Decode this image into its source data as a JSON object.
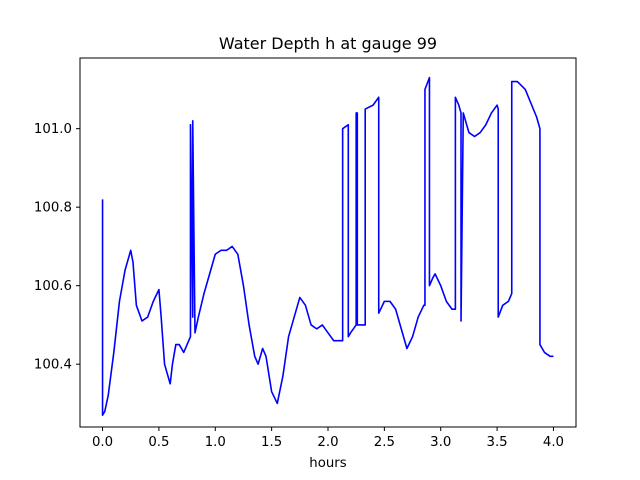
{
  "chart_data": {
    "type": "line",
    "title": "Water Depth h at gauge 99",
    "xlabel": "hours",
    "ylabel": "",
    "xlim": [
      -0.2,
      4.2
    ],
    "ylim": [
      100.24,
      101.18
    ],
    "xticks": [
      0.0,
      0.5,
      1.0,
      1.5,
      2.0,
      2.5,
      3.0,
      3.5,
      4.0
    ],
    "xtick_labels": [
      "0.0",
      "0.5",
      "1.0",
      "1.5",
      "2.0",
      "2.5",
      "3.0",
      "3.5",
      "4.0"
    ],
    "yticks": [
      100.4,
      100.6,
      100.8,
      101.0
    ],
    "ytick_labels": [
      "100.4",
      "100.6",
      "100.8",
      "101.0"
    ],
    "grid": false,
    "legend": "none",
    "series": [
      {
        "color": "#0000ff",
        "x": [
          0.0,
          0.0,
          0.02,
          0.05,
          0.1,
          0.15,
          0.2,
          0.25,
          0.27,
          0.3,
          0.35,
          0.4,
          0.45,
          0.5,
          0.52,
          0.55,
          0.6,
          0.62,
          0.65,
          0.68,
          0.72,
          0.75,
          0.78,
          0.78,
          0.8,
          0.8,
          0.82,
          0.85,
          0.9,
          0.95,
          1.0,
          1.05,
          1.1,
          1.15,
          1.2,
          1.25,
          1.3,
          1.35,
          1.38,
          1.42,
          1.45,
          1.5,
          1.55,
          1.6,
          1.65,
          1.7,
          1.75,
          1.8,
          1.85,
          1.9,
          1.95,
          2.0,
          2.05,
          2.1,
          2.13,
          2.13,
          2.18,
          2.18,
          2.2,
          2.25,
          2.25,
          2.26,
          2.26,
          2.3,
          2.33,
          2.33,
          2.4,
          2.45,
          2.45,
          2.5,
          2.55,
          2.6,
          2.65,
          2.7,
          2.75,
          2.8,
          2.85,
          2.86,
          2.86,
          2.9,
          2.9,
          2.93,
          2.95,
          3.0,
          3.05,
          3.1,
          3.13,
          3.13,
          3.16,
          3.18,
          3.18,
          3.2,
          3.25,
          3.3,
          3.35,
          3.4,
          3.45,
          3.5,
          3.51,
          3.51,
          3.55,
          3.6,
          3.63,
          3.63,
          3.68,
          3.75,
          3.85,
          3.88,
          3.88,
          3.92,
          3.97,
          4.0
        ],
        "values": [
          100.82,
          100.27,
          100.28,
          100.32,
          100.43,
          100.56,
          100.64,
          100.69,
          100.66,
          100.55,
          100.51,
          100.52,
          100.56,
          100.59,
          100.52,
          100.4,
          100.35,
          100.4,
          100.45,
          100.45,
          100.43,
          100.45,
          100.47,
          101.01,
          100.52,
          101.02,
          100.48,
          100.52,
          100.58,
          100.63,
          100.68,
          100.69,
          100.69,
          100.7,
          100.68,
          100.6,
          100.5,
          100.42,
          100.4,
          100.44,
          100.42,
          100.33,
          100.3,
          100.37,
          100.47,
          100.52,
          100.57,
          100.55,
          100.5,
          100.49,
          100.5,
          100.48,
          100.46,
          100.46,
          100.46,
          101.0,
          101.01,
          100.47,
          100.48,
          100.5,
          101.04,
          101.04,
          100.5,
          100.5,
          100.5,
          101.05,
          101.06,
          101.08,
          100.53,
          100.56,
          100.56,
          100.54,
          100.49,
          100.44,
          100.47,
          100.52,
          100.55,
          100.55,
          101.1,
          101.13,
          100.6,
          100.62,
          100.63,
          100.6,
          100.56,
          100.54,
          100.54,
          101.08,
          101.06,
          101.04,
          100.51,
          101.04,
          100.99,
          100.98,
          100.99,
          101.01,
          101.04,
          101.06,
          101.05,
          100.52,
          100.55,
          100.56,
          100.58,
          101.12,
          101.12,
          101.1,
          101.03,
          101.0,
          100.45,
          100.43,
          100.42,
          100.42
        ]
      }
    ]
  }
}
